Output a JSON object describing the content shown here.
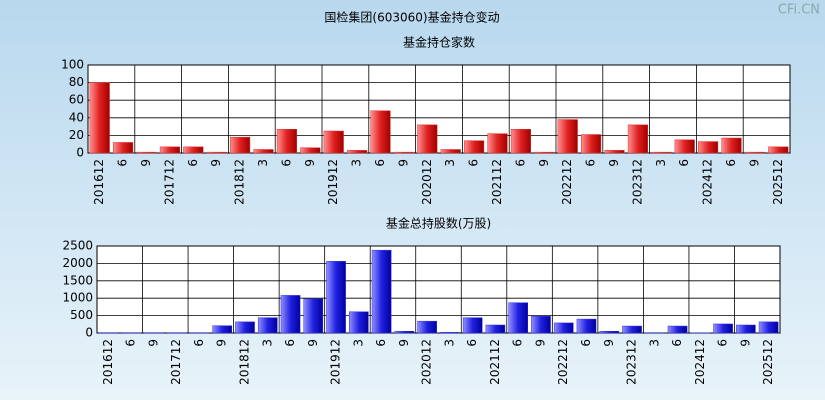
{
  "title": "国检集团(603060)基金持仓变动",
  "watermark": "CFi.CN",
  "chart_data": [
    {
      "type": "bar",
      "title": "基金持仓家数",
      "color": "#e03030",
      "categories": [
        "201612",
        "6",
        "9",
        "201712",
        "6",
        "9",
        "201812",
        "3",
        "6",
        "9",
        "201912",
        "3",
        "6",
        "9",
        "202012",
        "3",
        "6",
        "202112",
        "6",
        "9",
        "202212",
        "6",
        "9",
        "202312",
        "3",
        "6",
        "202412",
        "6",
        "9",
        "202512"
      ],
      "values": [
        80,
        12,
        1,
        7,
        7,
        1,
        18,
        4,
        27,
        6,
        25,
        3,
        48,
        1,
        32,
        4,
        14,
        22,
        27,
        1,
        38,
        21,
        3,
        32,
        1,
        15,
        13,
        17,
        1,
        7
      ],
      "ylim": [
        0,
        100
      ],
      "yticks": [
        0,
        20,
        40,
        60,
        80,
        100
      ],
      "grid": true
    },
    {
      "type": "bar",
      "title": "基金总持股数(万股)",
      "color": "#3030e0",
      "categories": [
        "201612",
        "6",
        "9",
        "201712",
        "6",
        "9",
        "201812",
        "3",
        "6",
        "9",
        "201912",
        "3",
        "6",
        "9",
        "202012",
        "3",
        "6",
        "202112",
        "6",
        "9",
        "202212",
        "6",
        "9",
        "202312",
        "3",
        "6",
        "202412",
        "6",
        "9",
        "202512"
      ],
      "values": [
        10,
        10,
        10,
        10,
        10,
        210,
        320,
        440,
        1080,
        980,
        2060,
        610,
        2380,
        50,
        340,
        20,
        440,
        230,
        870,
        480,
        290,
        400,
        50,
        200,
        10,
        200,
        5,
        260,
        230,
        320
      ],
      "ylim": [
        0,
        2500
      ],
      "yticks": [
        0,
        500,
        1000,
        1500,
        2000,
        2500
      ],
      "grid": true
    }
  ]
}
